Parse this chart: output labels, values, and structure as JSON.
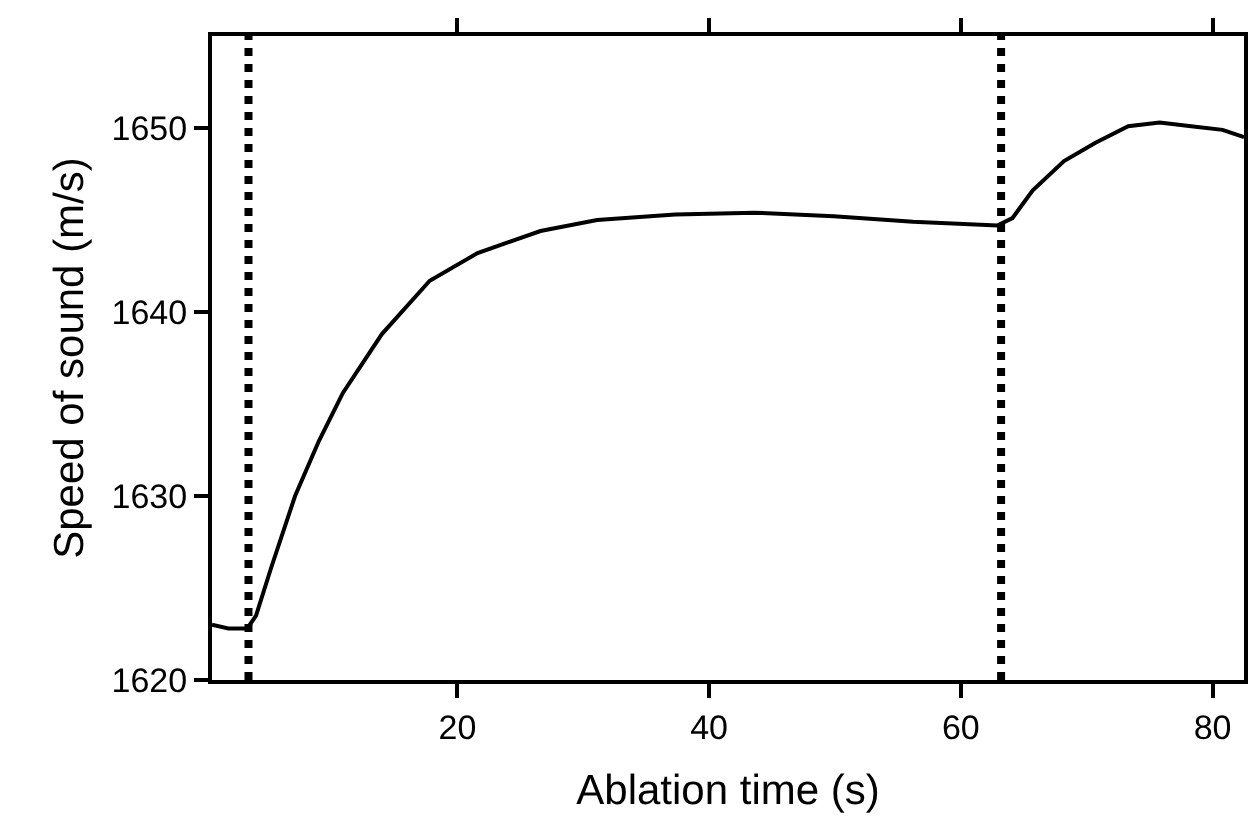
{
  "chart_data": {
    "type": "line",
    "xlabel": "Ablation time (s)",
    "ylabel": "Speed of sound (m/s)",
    "x": [
      0.5,
      1.8,
      3.3,
      4.0,
      5.2,
      7.1,
      9.0,
      10.9,
      14.0,
      17.8,
      21.6,
      26.6,
      31.1,
      37.3,
      43.6,
      49.9,
      56.2,
      62.9,
      64.1,
      65.7,
      68.2,
      70.7,
      73.3,
      75.8,
      78.3,
      80.8,
      82.5
    ],
    "series": [
      {
        "color": "#000000",
        "values": [
          1623.0,
          1622.8,
          1622.8,
          1623.5,
          1626.1,
          1630.0,
          1633.0,
          1635.6,
          1638.8,
          1641.7,
          1643.2,
          1644.4,
          1645.0,
          1645.3,
          1645.4,
          1645.2,
          1644.9,
          1644.7,
          1645.1,
          1646.6,
          1648.2,
          1649.2,
          1650.1,
          1650.3,
          1650.1,
          1649.9,
          1649.5
        ]
      }
    ],
    "xlim": [
      0.5,
      82.5
    ],
    "ylim": [
      1620,
      1655
    ],
    "xticks": [
      20,
      40,
      60,
      80
    ],
    "yticks": [
      1620,
      1630,
      1640,
      1650
    ],
    "ref_lines": [
      {
        "axis": "x",
        "value": 3.4,
        "color": "#000000",
        "line_style": "dotted"
      },
      {
        "axis": "x",
        "value": 63.2,
        "color": "#000000",
        "line_style": "dotted"
      }
    ],
    "marker": "none",
    "line_style": "solid"
  }
}
